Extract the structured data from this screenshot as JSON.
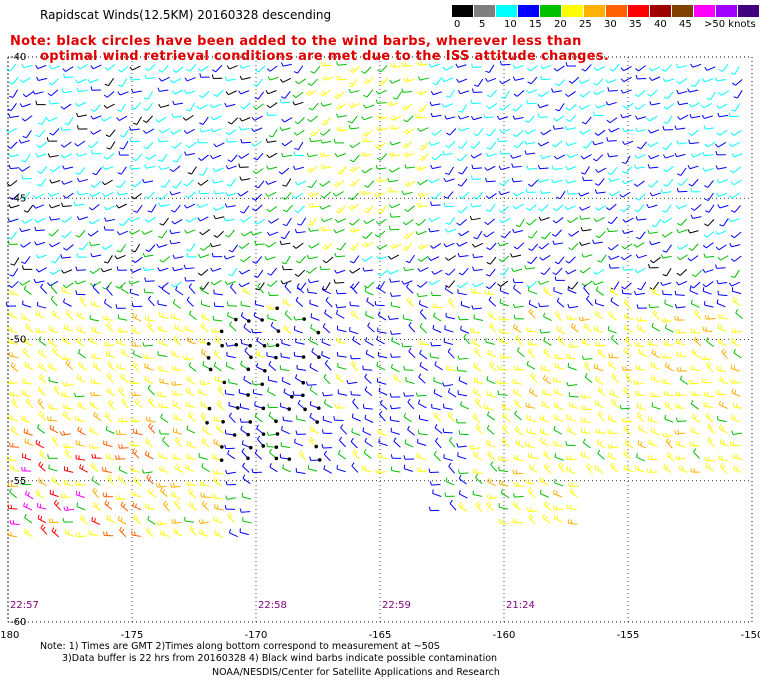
{
  "header": {
    "title": "Rapidscat Winds(12.5KM) 20160328 descending",
    "note_line1": "Note: black circles have been added to the wind barbs, wherever less than",
    "note_line2": "optimal wind retrieval conditions are met due to the ISS attitude changes."
  },
  "colorbar": {
    "colors": [
      "#000000",
      "#7f7f7f",
      "#00ffff",
      "#0000ff",
      "#00c000",
      "#ffff00",
      "#ffb000",
      "#ff6000",
      "#ff0000",
      "#a00000",
      "#804000",
      "#ff00ff",
      "#a000ff",
      "#400080"
    ],
    "labels": [
      "0",
      "5",
      "10",
      "15",
      "20",
      "25",
      "30",
      "35",
      "40",
      "45",
      ">50 knots"
    ]
  },
  "chart_data": {
    "type": "scatter",
    "title": "Rapidscat Winds(12.5KM) 20160328 descending",
    "x_ticks": [
      "-180",
      "-175",
      "-170",
      "-165",
      "-160",
      "-155",
      "-150"
    ],
    "y_ticks": [
      "-40",
      "-45",
      "-50",
      "-55",
      "-60"
    ],
    "xlim": [
      -180,
      -150
    ],
    "ylim": [
      -60,
      -40
    ],
    "grid": true,
    "time_labels": [
      {
        "lon": -180.0,
        "text": "22:57"
      },
      {
        "lon": -170.0,
        "text": "22:58"
      },
      {
        "lon": -165.0,
        "text": "22:59"
      },
      {
        "lon": -160.0,
        "text": "21:24"
      }
    ],
    "series": [
      {
        "name": "0-5 knots",
        "color": "#000000"
      },
      {
        "name": "5-10 knots",
        "color": "#00ffff"
      },
      {
        "name": "10-15 knots",
        "color": "#0000ff"
      },
      {
        "name": "15-20 knots",
        "color": "#00c000"
      },
      {
        "name": "20-25 knots",
        "color": "#ffff00"
      },
      {
        "name": "25-30 knots",
        "color": "#ffb000"
      },
      {
        "name": "30-35 knots",
        "color": "#ff6000"
      },
      {
        "name": "35-40 knots",
        "color": "#ff0000"
      },
      {
        "name": "45-50 knots",
        "color": "#ff00ff"
      }
    ]
  },
  "footer": {
    "line1": "Note: 1) Times are GMT 2)Times along bottom correspond to measurement at ~50S",
    "line2": "3)Data buffer is 22 hrs from 20160328 4) Black wind barbs indicate possible contamination",
    "line3": "NOAA/NESDIS/Center for Satellite Applications and Research"
  }
}
